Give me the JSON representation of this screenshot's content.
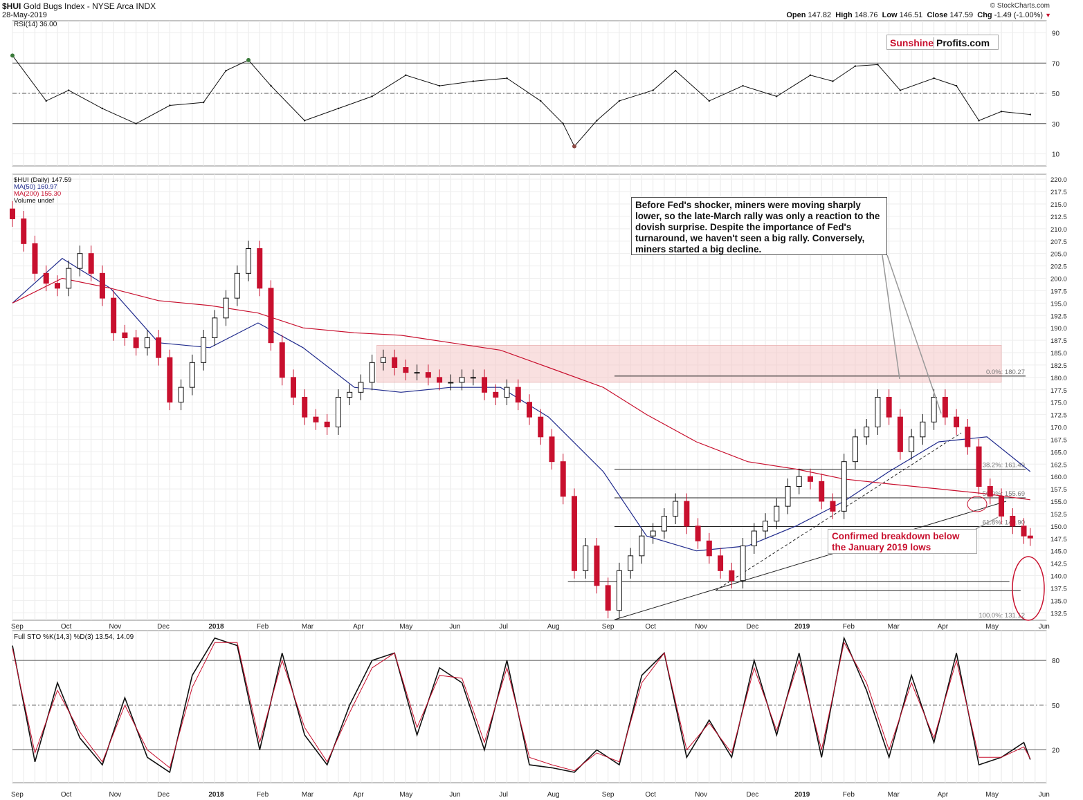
{
  "header": {
    "symbol": "$HUI",
    "name": "Gold Bugs Index - NYSE Arca INDX",
    "date": "28-May-2019",
    "open_label": "Open",
    "open": "147.82",
    "high_label": "High",
    "high": "148.76",
    "low_label": "Low",
    "low": "146.51",
    "close_label": "Close",
    "close": "147.59",
    "chg_label": "Chg",
    "chg": "-1.49 (-1.00%)",
    "credit": "© StockCharts.com"
  },
  "logo": {
    "part1": "Sunshine",
    "part2": "Profits.com"
  },
  "annotations": {
    "fed_note": "Before Fed's shocker, miners were moving sharply lower, so the late-March rally was only a reaction to the dovish surprise. Despite the importance of Fed's turnaround, we haven't seen a big rally. Conversely, miners started a big decline.",
    "breakdown_note": "Confirmed breakdown below the January 2019 lows"
  },
  "colors": {
    "up_candle": "#111111",
    "down_candle": "#c8102e",
    "ma50": "#1f2a8c",
    "ma200": "#c8102e",
    "resistance_zone": "#f4c6c6",
    "stoch_d": "#c8102e",
    "rsi_fill_low": "#8c4a44",
    "rsi_fill_high": "#3a7a3a"
  },
  "chart_data": [
    {
      "type": "line",
      "panel": "rsi",
      "title": "RSI(14) 36.00",
      "y_ticks": [
        10,
        30,
        50,
        70,
        90
      ],
      "ylim": [
        2,
        98
      ],
      "reference_lines": [
        30,
        50,
        70
      ],
      "x": [
        "2017-09-01",
        "2017-09-22",
        "2017-10-06",
        "2017-10-27",
        "2017-11-17",
        "2017-12-08",
        "2017-12-29",
        "2018-01-12",
        "2018-01-26",
        "2018-02-09",
        "2018-03-02",
        "2018-03-23",
        "2018-04-13",
        "2018-05-04",
        "2018-05-25",
        "2018-06-15",
        "2018-07-06",
        "2018-07-27",
        "2018-08-10",
        "2018-08-17",
        "2018-08-31",
        "2018-09-14",
        "2018-10-05",
        "2018-10-19",
        "2018-11-09",
        "2018-11-30",
        "2018-12-21",
        "2019-01-11",
        "2019-01-25",
        "2019-02-08",
        "2019-02-22",
        "2019-03-08",
        "2019-03-29",
        "2019-04-12",
        "2019-04-26",
        "2019-05-10",
        "2019-05-28"
      ],
      "values": [
        75,
        45,
        52,
        40,
        30,
        42,
        44,
        65,
        72,
        55,
        32,
        40,
        48,
        62,
        55,
        58,
        60,
        45,
        30,
        15,
        32,
        45,
        52,
        65,
        45,
        55,
        48,
        62,
        58,
        68,
        69,
        52,
        60,
        55,
        32,
        38,
        36
      ]
    },
    {
      "type": "candlestick",
      "panel": "price",
      "title": "$HUI (Daily) 147.59",
      "legend": [
        "$HUI (Daily) 147.59",
        "MA(50) 160.97",
        "MA(200) 155.30",
        "Volume undef"
      ],
      "ylim": [
        131.0,
        221.0
      ],
      "y_ticks": [
        132.5,
        135.0,
        137.5,
        140.0,
        142.5,
        145.0,
        147.5,
        150.0,
        152.5,
        155.0,
        157.5,
        160.0,
        162.5,
        165.0,
        167.5,
        170.0,
        172.5,
        175.0,
        177.5,
        180.0,
        182.5,
        185.0,
        187.5,
        190.0,
        192.5,
        195.0,
        197.5,
        200.0,
        202.5,
        205.0,
        207.5,
        210.0,
        212.5,
        215.0,
        217.5,
        220.0
      ],
      "x_ticks": [
        "Sep",
        "Oct",
        "Nov",
        "Dec",
        "2018",
        "Feb",
        "Mar",
        "Apr",
        "May",
        "Jun",
        "Jul",
        "Aug",
        "Sep",
        "Oct",
        "Nov",
        "Dec",
        "2019",
        "Feb",
        "Mar",
        "Apr",
        "May",
        "Jun"
      ],
      "x_tick_dates": [
        "2017-09-01",
        "2017-10-02",
        "2017-11-01",
        "2017-12-01",
        "2018-01-02",
        "2018-02-01",
        "2018-03-01",
        "2018-04-02",
        "2018-05-01",
        "2018-06-01",
        "2018-07-02",
        "2018-08-01",
        "2018-09-04",
        "2018-10-01",
        "2018-11-01",
        "2018-12-03",
        "2019-01-02",
        "2019-02-01",
        "2019-03-01",
        "2019-04-01",
        "2019-05-01",
        "2019-06-03"
      ],
      "x_range": [
        "2017-09-01",
        "2019-06-07"
      ],
      "close_series": {
        "x": [
          "2017-09-01",
          "2017-09-08",
          "2017-09-15",
          "2017-09-22",
          "2017-09-29",
          "2017-10-06",
          "2017-10-13",
          "2017-10-20",
          "2017-10-27",
          "2017-11-03",
          "2017-11-10",
          "2017-11-17",
          "2017-11-24",
          "2017-12-01",
          "2017-12-08",
          "2017-12-15",
          "2017-12-22",
          "2017-12-29",
          "2018-01-05",
          "2018-01-12",
          "2018-01-19",
          "2018-01-26",
          "2018-02-02",
          "2018-02-09",
          "2018-02-16",
          "2018-02-23",
          "2018-03-02",
          "2018-03-09",
          "2018-03-16",
          "2018-03-23",
          "2018-03-30",
          "2018-04-06",
          "2018-04-13",
          "2018-04-20",
          "2018-04-27",
          "2018-05-04",
          "2018-05-11",
          "2018-05-18",
          "2018-05-25",
          "2018-06-01",
          "2018-06-08",
          "2018-06-15",
          "2018-06-22",
          "2018-06-29",
          "2018-07-06",
          "2018-07-13",
          "2018-07-20",
          "2018-07-27",
          "2018-08-03",
          "2018-08-10",
          "2018-08-17",
          "2018-08-24",
          "2018-08-31",
          "2018-09-07",
          "2018-09-14",
          "2018-09-21",
          "2018-09-28",
          "2018-10-05",
          "2018-10-12",
          "2018-10-19",
          "2018-10-26",
          "2018-11-02",
          "2018-11-09",
          "2018-11-16",
          "2018-11-23",
          "2018-11-30",
          "2018-12-07",
          "2018-12-14",
          "2018-12-21",
          "2018-12-28",
          "2019-01-04",
          "2019-01-11",
          "2019-01-18",
          "2019-01-25",
          "2019-02-01",
          "2019-02-08",
          "2019-02-15",
          "2019-02-22",
          "2019-03-01",
          "2019-03-08",
          "2019-03-15",
          "2019-03-22",
          "2019-03-29",
          "2019-04-05",
          "2019-04-12",
          "2019-04-19",
          "2019-04-26",
          "2019-05-03",
          "2019-05-10",
          "2019-05-17",
          "2019-05-24",
          "2019-05-28"
        ],
        "values": [
          212.0,
          207.0,
          201.0,
          199.0,
          198.0,
          202.0,
          205.0,
          201.0,
          196.0,
          189.0,
          188.0,
          186.0,
          188.0,
          184.0,
          175.0,
          178.0,
          183.0,
          188.0,
          192.0,
          196.0,
          201.0,
          206.0,
          198.0,
          187.0,
          180.0,
          176.0,
          172.0,
          171.0,
          170.0,
          176.0,
          177.0,
          179.0,
          183.0,
          184.0,
          182.0,
          181.0,
          181.0,
          180.0,
          179.0,
          179.0,
          180.0,
          180.0,
          177.0,
          176.0,
          178.0,
          175.0,
          172.0,
          168.0,
          163.0,
          156.0,
          141.0,
          146.0,
          138.0,
          133.0,
          141.0,
          144.0,
          148.0,
          149.0,
          152.0,
          155.0,
          150.0,
          147.0,
          144.0,
          141.0,
          139.0,
          146.0,
          149.0,
          151.0,
          154.0,
          158.0,
          160.0,
          159.0,
          155.0,
          153.0,
          163.0,
          168.0,
          170.0,
          176.0,
          172.0,
          165.0,
          168.0,
          171.0,
          176.0,
          172.0,
          170.0,
          166.0,
          158.0,
          156.0,
          152.0,
          150.0,
          148.0,
          147.59
        ]
      },
      "series": [
        {
          "name": "MA(50) 160.97",
          "x": [
            "2017-09-01",
            "2017-10-02",
            "2017-11-01",
            "2017-12-01",
            "2018-01-02",
            "2018-02-01",
            "2018-03-01",
            "2018-04-02",
            "2018-05-01",
            "2018-06-01",
            "2018-07-02",
            "2018-08-01",
            "2018-09-04",
            "2018-10-01",
            "2018-11-01",
            "2018-12-03",
            "2019-01-02",
            "2019-02-01",
            "2019-03-01",
            "2019-04-01",
            "2019-05-01",
            "2019-05-28"
          ],
          "values": [
            195.0,
            204.0,
            198.0,
            187.0,
            186.0,
            191.0,
            186.0,
            178.0,
            177.0,
            178.0,
            178.0,
            172.0,
            161.0,
            148.0,
            145.0,
            146.0,
            150.0,
            155.0,
            161.0,
            167.0,
            168.0,
            161.0
          ]
        },
        {
          "name": "MA(200) 155.30",
          "x": [
            "2017-09-01",
            "2017-10-02",
            "2017-11-01",
            "2017-12-01",
            "2018-01-02",
            "2018-02-01",
            "2018-03-01",
            "2018-04-02",
            "2018-05-01",
            "2018-06-01",
            "2018-07-02",
            "2018-08-01",
            "2018-09-04",
            "2018-10-01",
            "2018-11-01",
            "2018-12-03",
            "2019-01-02",
            "2019-02-01",
            "2019-03-01",
            "2019-04-01",
            "2019-05-01",
            "2019-05-28"
          ],
          "values": [
            195.0,
            200.0,
            198.0,
            195.5,
            194.5,
            193.0,
            190.0,
            189.0,
            188.5,
            187.0,
            185.5,
            182.0,
            178.0,
            172.5,
            167.0,
            163.0,
            161.5,
            159.5,
            158.5,
            157.5,
            156.5,
            155.3
          ]
        }
      ],
      "fibonacci_levels": [
        {
          "label": "0.0%: 180.27",
          "value": 180.27
        },
        {
          "label": "38.2%: 161.49",
          "value": 161.49
        },
        {
          "label": "50.0%: 155.69",
          "value": 155.69
        },
        {
          "label": "61.8%: 149.90",
          "value": 149.9
        },
        {
          "label": "100.0%: 131.12",
          "value": 131.12
        }
      ],
      "horizontal_lines": [
        {
          "value": 138.8,
          "from": "2018-08-13",
          "to": "2019-05-15"
        },
        {
          "value": 137.0,
          "from": "2018-11-13",
          "to": "2019-05-22"
        }
      ],
      "trendlines": [
        {
          "style": "solid",
          "from": [
            "2018-09-11",
            131.12
          ],
          "to": [
            "2019-05-13",
            155.0
          ]
        },
        {
          "style": "dashed",
          "from": [
            "2018-11-13",
            137.0
          ],
          "to": [
            "2019-04-15",
            168.8
          ]
        }
      ],
      "resistance_zone": {
        "from": "2018-04-16",
        "to": "2019-05-10",
        "low": 179.0,
        "high": 186.5
      }
    },
    {
      "type": "line",
      "panel": "stochastic",
      "title": "Full STO %K(14,3) %D(3) 13.54, 14.09",
      "y_ticks": [
        20,
        50,
        80
      ],
      "ylim": [
        -2,
        100
      ],
      "reference_lines": [
        20,
        50,
        80
      ],
      "series": [
        {
          "name": "%K",
          "x": [
            "2017-09-01",
            "2017-09-15",
            "2017-09-29",
            "2017-10-13",
            "2017-10-27",
            "2017-11-10",
            "2017-11-24",
            "2017-12-08",
            "2017-12-22",
            "2018-01-05",
            "2018-01-19",
            "2018-02-02",
            "2018-02-16",
            "2018-03-02",
            "2018-03-16",
            "2018-03-30",
            "2018-04-13",
            "2018-04-27",
            "2018-05-11",
            "2018-05-25",
            "2018-06-08",
            "2018-06-22",
            "2018-07-06",
            "2018-07-20",
            "2018-08-03",
            "2018-08-17",
            "2018-08-31",
            "2018-09-14",
            "2018-09-28",
            "2018-10-12",
            "2018-10-26",
            "2018-11-09",
            "2018-11-23",
            "2018-12-07",
            "2018-12-21",
            "2019-01-04",
            "2019-01-18",
            "2019-02-01",
            "2019-02-15",
            "2019-03-01",
            "2019-03-15",
            "2019-03-29",
            "2019-04-12",
            "2019-04-26",
            "2019-05-10",
            "2019-05-24",
            "2019-05-28"
          ],
          "values": [
            90,
            12,
            65,
            28,
            10,
            55,
            15,
            5,
            70,
            95,
            90,
            20,
            85,
            30,
            10,
            50,
            80,
            85,
            30,
            75,
            65,
            20,
            80,
            10,
            8,
            5,
            20,
            10,
            70,
            85,
            15,
            40,
            15,
            80,
            30,
            85,
            15,
            95,
            60,
            15,
            70,
            25,
            85,
            10,
            15,
            25,
            13.54
          ]
        },
        {
          "name": "%D",
          "x": [
            "2017-09-01",
            "2017-09-15",
            "2017-09-29",
            "2017-10-13",
            "2017-10-27",
            "2017-11-10",
            "2017-11-24",
            "2017-12-08",
            "2017-12-22",
            "2018-01-05",
            "2018-01-19",
            "2018-02-02",
            "2018-02-16",
            "2018-03-02",
            "2018-03-16",
            "2018-03-30",
            "2018-04-13",
            "2018-04-27",
            "2018-05-11",
            "2018-05-25",
            "2018-06-08",
            "2018-06-22",
            "2018-07-06",
            "2018-07-20",
            "2018-08-03",
            "2018-08-17",
            "2018-08-31",
            "2018-09-14",
            "2018-09-28",
            "2018-10-12",
            "2018-10-26",
            "2018-11-09",
            "2018-11-23",
            "2018-12-07",
            "2018-12-21",
            "2019-01-04",
            "2019-01-18",
            "2019-02-01",
            "2019-02-15",
            "2019-03-01",
            "2019-03-15",
            "2019-03-29",
            "2019-04-12",
            "2019-04-26",
            "2019-05-10",
            "2019-05-24",
            "2019-05-28"
          ],
          "values": [
            88,
            18,
            60,
            32,
            12,
            50,
            20,
            8,
            62,
            92,
            92,
            25,
            80,
            35,
            12,
            45,
            75,
            85,
            35,
            70,
            68,
            25,
            75,
            15,
            10,
            6,
            18,
            12,
            65,
            85,
            20,
            38,
            18,
            75,
            33,
            80,
            20,
            92,
            65,
            20,
            65,
            28,
            80,
            15,
            15,
            22,
            14.09
          ]
        }
      ]
    }
  ]
}
